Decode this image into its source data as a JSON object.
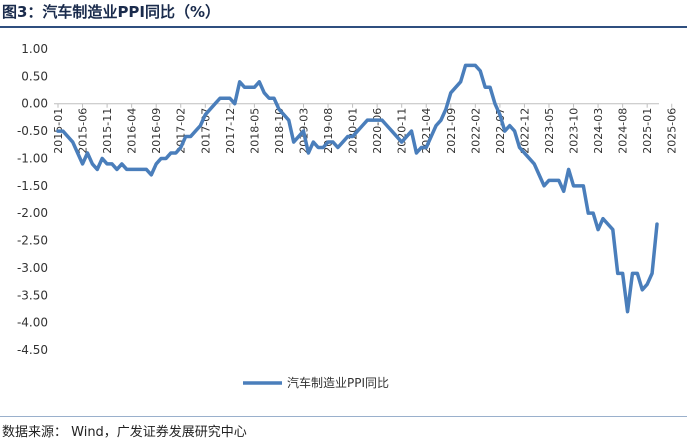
{
  "figure": {
    "title": "图3：汽车制造业PPI同比（%）",
    "source": "数据来源： Wind，广发证券发展研究中心"
  },
  "colors": {
    "series": "#4a7ebb",
    "axis": "#bfbfbf",
    "text": "#333333",
    "title": "#1a2b4c"
  },
  "chart_data": {
    "type": "line",
    "title": "汽车制造业PPI同比（%）",
    "xlabel": "",
    "ylabel": "",
    "ylim": [
      -4.5,
      1.0
    ],
    "yticks": [
      "1.00",
      "0.50",
      "0.00",
      "-0.50",
      "-1.00",
      "-1.50",
      "-2.00",
      "-2.50",
      "-3.00",
      "-3.50",
      "-4.00",
      "-4.50"
    ],
    "x_tick_labels": [
      "2015-01",
      "2015-06",
      "2015-11",
      "2016-04",
      "2016-09",
      "2017-02",
      "2017-07",
      "2017-12",
      "2018-05",
      "2018-10",
      "2019-03",
      "2019-08",
      "2020-01",
      "2020-06",
      "2020-11",
      "2021-04",
      "2021-09",
      "2022-02",
      "2022-07",
      "2022-12",
      "2023-05",
      "2023-10",
      "2024-03",
      "2024-08",
      "2025-01",
      "2025-06"
    ],
    "legend": "bottom-center",
    "series": [
      {
        "name": "汽车制造业PPI同比",
        "values": [
          -0.5,
          -0.5,
          -0.6,
          -0.7,
          -0.9,
          -1.1,
          -0.9,
          -1.1,
          -1.2,
          -1.0,
          -1.1,
          -1.1,
          -1.2,
          -1.1,
          -1.2,
          -1.2,
          -1.2,
          -1.2,
          -1.2,
          -1.3,
          -1.1,
          -1.0,
          -1.0,
          -0.9,
          -0.9,
          -0.8,
          -0.6,
          -0.6,
          -0.5,
          -0.4,
          -0.2,
          -0.1,
          0.0,
          0.1,
          0.1,
          0.1,
          0.0,
          0.4,
          0.3,
          0.3,
          0.3,
          0.4,
          0.2,
          0.1,
          0.1,
          -0.1,
          -0.2,
          -0.3,
          -0.7,
          -0.6,
          -0.5,
          -0.9,
          -0.7,
          -0.8,
          -0.8,
          -0.7,
          -0.7,
          -0.8,
          -0.7,
          -0.6,
          -0.6,
          -0.5,
          -0.4,
          -0.3,
          -0.3,
          -0.3,
          -0.3,
          -0.4,
          -0.5,
          -0.6,
          -0.7,
          -0.6,
          -0.5,
          -0.9,
          -0.8,
          -0.8,
          -0.6,
          -0.4,
          -0.3,
          -0.1,
          0.2,
          0.3,
          0.4,
          0.7,
          0.7,
          0.7,
          0.6,
          0.3,
          0.3,
          0.0,
          -0.2,
          -0.5,
          -0.4,
          -0.5,
          -0.8,
          -0.9,
          -1.0,
          -1.1,
          -1.3,
          -1.5,
          -1.4,
          -1.4,
          -1.4,
          -1.6,
          -1.2,
          -1.5,
          -1.5,
          -1.5,
          -2.0,
          -2.0,
          -2.3,
          -2.1,
          -2.2,
          -2.3,
          -3.1,
          -3.1,
          -3.8,
          -3.1,
          -3.1,
          -3.4,
          -3.3,
          -3.1,
          -2.2
        ]
      }
    ]
  }
}
